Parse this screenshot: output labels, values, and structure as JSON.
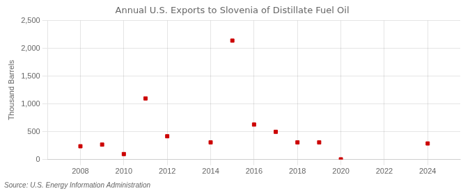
{
  "chart_data": {
    "type": "scatter",
    "title": "Annual U.S. Exports to Slovenia of Distillate Fuel Oil",
    "ylabel": "Thousand Barrels",
    "source": "Source: U.S. Energy Information Administration",
    "x": [
      2008,
      2009,
      2010,
      2011,
      2012,
      2014,
      2015,
      2016,
      2017,
      2018,
      2019,
      2020,
      2024
    ],
    "values": [
      240,
      270,
      100,
      1100,
      420,
      310,
      2140,
      630,
      500,
      310,
      310,
      5,
      290
    ],
    "color": "#cc0000",
    "marker": "square",
    "xlim": [
      2006.5,
      2025.5
    ],
    "xticks": [
      2008,
      2010,
      2012,
      2014,
      2016,
      2018,
      2020,
      2022,
      2024
    ],
    "ylim": [
      0,
      2500
    ],
    "yticks": [
      0,
      500,
      {
        "value": 1000,
        "label": "1,000"
      },
      {
        "value": 1500,
        "label": "1,500"
      },
      {
        "value": 2000,
        "label": "2,000"
      },
      {
        "value": 2500,
        "label": "2,500"
      }
    ],
    "grid": true
  }
}
